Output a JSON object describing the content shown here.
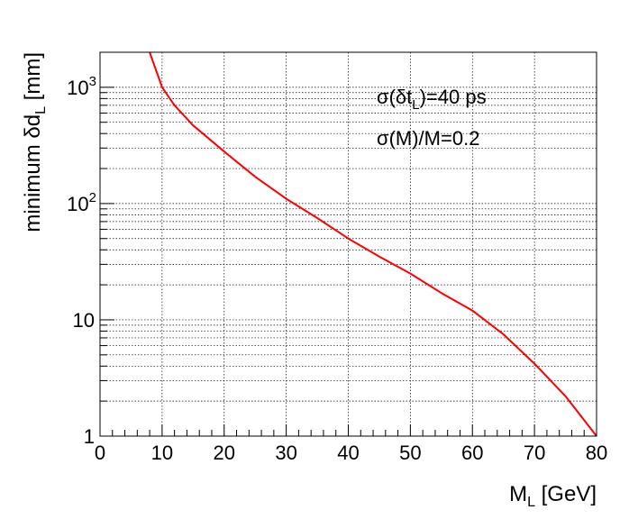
{
  "chart_data": {
    "type": "line",
    "xlabel": {
      "main": "M",
      "sub": "L",
      "rest": " [GeV]"
    },
    "ylabel": {
      "pre": "minimum δd",
      "sub": "L",
      "post": " [mm]"
    },
    "xlim": [
      0,
      80
    ],
    "ylim": [
      1,
      2000
    ],
    "y_scale": "log",
    "grid": true,
    "x_ticks": [
      0,
      10,
      20,
      30,
      40,
      50,
      60,
      70,
      80
    ],
    "x_tick_labels": [
      "0",
      "10",
      "20",
      "30",
      "40",
      "50",
      "60",
      "70",
      "80"
    ],
    "y_major_ticks": [
      {
        "value": 1,
        "label": "1"
      },
      {
        "value": 10,
        "label": "10"
      },
      {
        "value": 100,
        "label": "10",
        "exp": "2"
      },
      {
        "value": 1000,
        "label": "10",
        "exp": "3"
      }
    ],
    "annotations": [
      {
        "pre": "σ(δt",
        "sub": "L",
        "post": ")=40 ps"
      },
      {
        "pre": "σ(M)/M=0.2",
        "sub": "",
        "post": ""
      }
    ],
    "series": [
      {
        "color": "#ff0000",
        "x": [
          8,
          10,
          12,
          15,
          20,
          25,
          30,
          35,
          40,
          45,
          50,
          55,
          60,
          65,
          70,
          75,
          80
        ],
        "y": [
          2000,
          1000,
          700,
          470,
          280,
          170,
          110,
          75,
          50,
          35,
          25,
          17,
          12,
          7.5,
          4.2,
          2.2,
          1.0
        ]
      }
    ]
  }
}
